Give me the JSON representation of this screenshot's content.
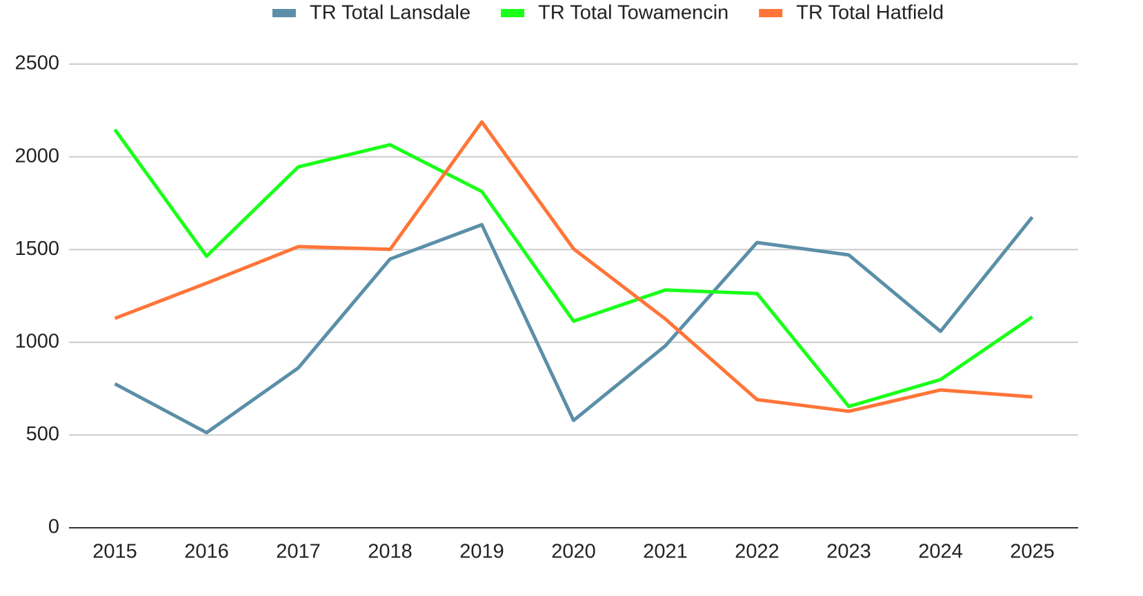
{
  "chart_data": {
    "type": "line",
    "categories": [
      "2015",
      "2016",
      "2017",
      "2018",
      "2019",
      "2020",
      "2021",
      "2022",
      "2023",
      "2024",
      "2025"
    ],
    "series": [
      {
        "name": "TR Total Lansdale",
        "color": "#5b8fa8",
        "values": [
          776,
          513,
          862,
          1449,
          1634,
          579,
          981,
          1538,
          1471,
          1059,
          1675
        ]
      },
      {
        "name": "TR Total Towamencin",
        "color": "#1aff1a",
        "values": [
          2147,
          1464,
          1946,
          2065,
          1813,
          1114,
          1282,
          1263,
          654,
          799,
          1137
        ]
      },
      {
        "name": "TR Total Hatfield",
        "color": "#ff7538",
        "values": [
          1129,
          1319,
          1516,
          1501,
          2188,
          1504,
          1126,
          691,
          628,
          743,
          706
        ]
      }
    ],
    "ylim": [
      0,
      2500
    ],
    "yticks": [
      0,
      500,
      1000,
      1500,
      2000,
      2500
    ],
    "grid": true,
    "legend": "top"
  }
}
